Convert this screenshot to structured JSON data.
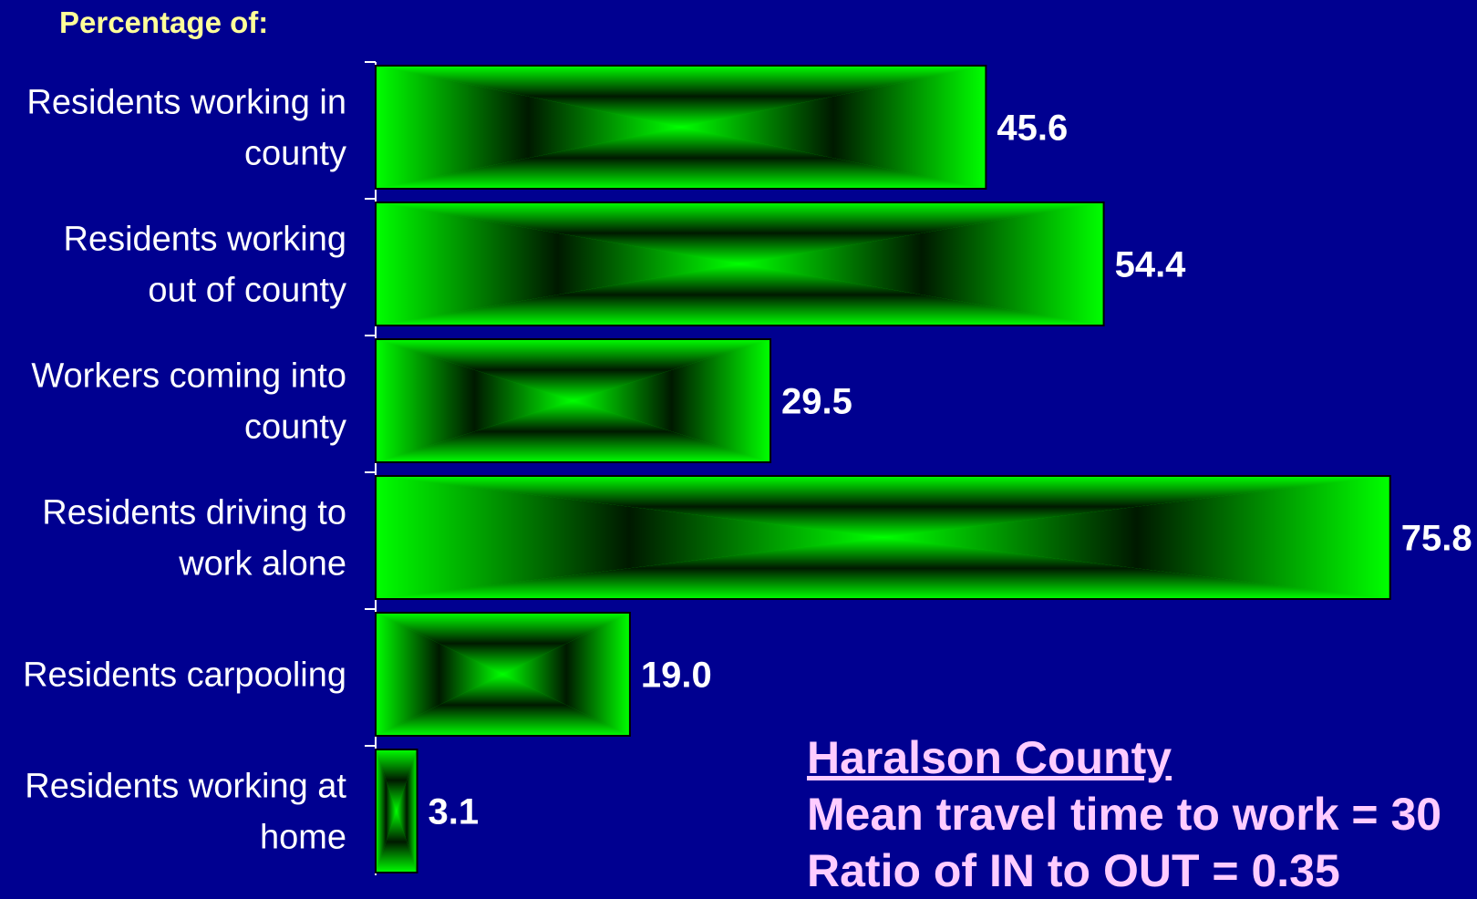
{
  "heading": "Percentage of:",
  "chart_data": {
    "type": "bar",
    "orientation": "horizontal",
    "categories": [
      [
        "Residents working in",
        "county"
      ],
      [
        "Residents working",
        "out of county"
      ],
      [
        "Workers coming into",
        "county"
      ],
      [
        "Residents driving to",
        "work alone"
      ],
      [
        "Residents carpooling"
      ],
      [
        "Residents working at",
        "home"
      ]
    ],
    "values": [
      45.6,
      54.4,
      29.5,
      75.8,
      19.0,
      3.1
    ],
    "value_labels": [
      "45.6",
      "54.4",
      "29.5",
      "75.8",
      "19.0",
      "3.1"
    ],
    "bar_color": "#00ff00",
    "bar_center_color": "#000000",
    "background_color": "#000090",
    "label_color": "#ffffff",
    "grid": false
  },
  "info": {
    "title": "Haralson County",
    "line1": "Mean travel time to work = 30",
    "line2": "Ratio of IN to OUT = 0.35"
  }
}
